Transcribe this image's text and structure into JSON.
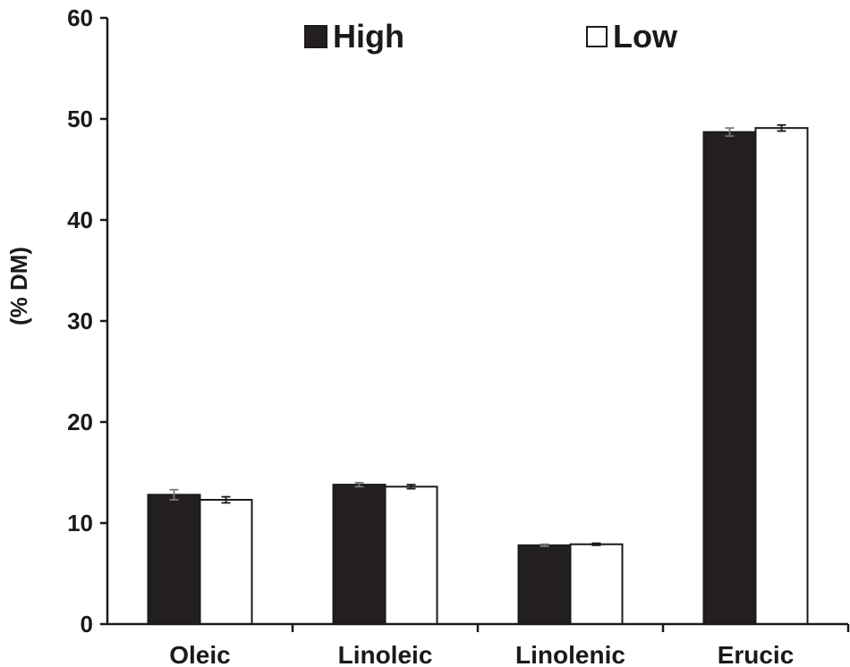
{
  "chart_data": {
    "type": "bar",
    "title": "",
    "xlabel": "",
    "ylabel": "(% DM)",
    "ylim": [
      0,
      60
    ],
    "yticks": [
      "0",
      "10",
      "20",
      "30",
      "40",
      "50",
      "60"
    ],
    "categories": [
      "Oleic",
      "Linoleic",
      "Linolenic",
      "Erucic"
    ],
    "series": [
      {
        "name": "High",
        "values": [
          12.8,
          13.8,
          7.8,
          48.7
        ],
        "errors": [
          0.5,
          0.2,
          0.1,
          0.4
        ],
        "color": "#231f20"
      },
      {
        "name": "Low",
        "values": [
          12.3,
          13.6,
          7.9,
          49.1
        ],
        "errors": [
          0.3,
          0.2,
          0.1,
          0.3
        ],
        "color": "#ffffff"
      }
    ],
    "legend_position": "top",
    "grid": false
  }
}
